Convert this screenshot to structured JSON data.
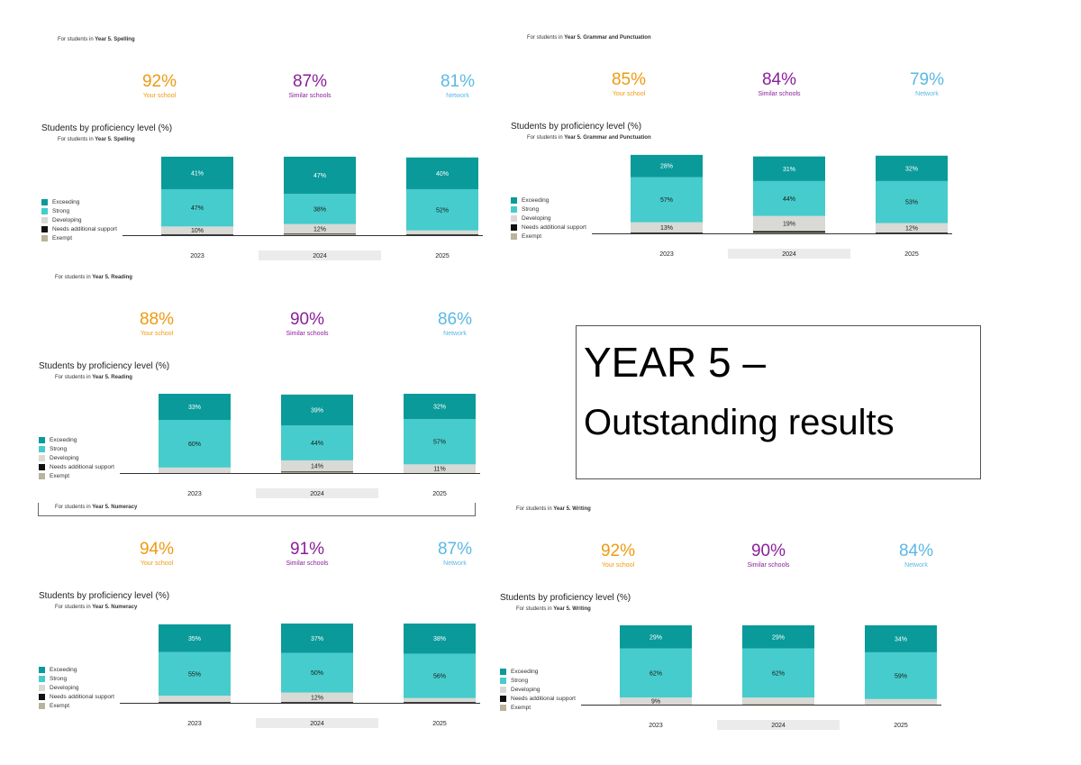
{
  "legend": {
    "items": [
      {
        "label": "Exceeding",
        "color": "#0a9a9a"
      },
      {
        "label": "Strong",
        "color": "#46cccc"
      },
      {
        "label": "Developing",
        "color": "#d9d9d5"
      },
      {
        "label": "Needs additional support",
        "color": "#111111"
      },
      {
        "label": "Exempt",
        "color": "#b8b39a"
      }
    ]
  },
  "summary_labels": {
    "school": "Your school",
    "similar": "Similar schools",
    "network": "Network"
  },
  "summary_colors": {
    "school": "#ee9a10",
    "similar": "#8a1f9a",
    "network": "#5bb8e4"
  },
  "chart_title": "Students by proficiency level (%)",
  "subtitle_prefix": "For students in",
  "title_box": {
    "line1": "YEAR 5 –",
    "line2": "Outstanding results"
  },
  "chart_data": [
    {
      "type": "bar",
      "stacked": true,
      "subject": "Year 5. Spelling",
      "summary": {
        "school": "92%",
        "similar": "87%",
        "network": "81%"
      },
      "categories": [
        "2023",
        "2024",
        "2025"
      ],
      "series": [
        {
          "name": "Exceeding",
          "values": [
            41,
            47,
            40
          ]
        },
        {
          "name": "Strong",
          "values": [
            47,
            38,
            52
          ]
        },
        {
          "name": "Developing",
          "values": [
            10,
            12,
            5
          ]
        },
        {
          "name": "Needs additional support",
          "values": [
            1,
            1,
            1
          ]
        },
        {
          "name": "Exempt",
          "values": [
            0,
            1,
            0
          ]
        }
      ],
      "labels": [
        [
          "41%",
          "47%",
          "10%"
        ],
        [
          "47%",
          "38%",
          "12%"
        ],
        [
          "40%",
          "52%",
          ""
        ]
      ]
    },
    {
      "type": "bar",
      "stacked": true,
      "subject": "Year 5. Grammar and Punctuation",
      "summary": {
        "school": "85%",
        "similar": "84%",
        "network": "79%"
      },
      "categories": [
        "2023",
        "2024",
        "2025"
      ],
      "series": [
        {
          "name": "Exceeding",
          "values": [
            28,
            31,
            32
          ]
        },
        {
          "name": "Strong",
          "values": [
            57,
            44,
            53
          ]
        },
        {
          "name": "Developing",
          "values": [
            13,
            19,
            12
          ]
        },
        {
          "name": "Needs additional support",
          "values": [
            1,
            2,
            1
          ]
        },
        {
          "name": "Exempt",
          "values": [
            0,
            1,
            0
          ]
        }
      ],
      "labels": [
        [
          "28%",
          "57%",
          "13%"
        ],
        [
          "31%",
          "44%",
          "19%"
        ],
        [
          "32%",
          "53%",
          "12%"
        ]
      ]
    },
    {
      "type": "bar",
      "stacked": true,
      "subject": "Year 5. Reading",
      "summary": {
        "school": "88%",
        "similar": "90%",
        "network": "86%"
      },
      "categories": [
        "2023",
        "2024",
        "2025"
      ],
      "series": [
        {
          "name": "Exceeding",
          "values": [
            33,
            39,
            32
          ]
        },
        {
          "name": "Strong",
          "values": [
            60,
            44,
            57
          ]
        },
        {
          "name": "Developing",
          "values": [
            7,
            14,
            11
          ]
        },
        {
          "name": "Needs additional support",
          "values": [
            0,
            1,
            0
          ]
        },
        {
          "name": "Exempt",
          "values": [
            0,
            1,
            0
          ]
        }
      ],
      "labels": [
        [
          "33%",
          "60%",
          ""
        ],
        [
          "39%",
          "44%",
          "14%"
        ],
        [
          "32%",
          "57%",
          "11%"
        ]
      ]
    },
    {
      "type": "bar",
      "stacked": true,
      "subject": "Year 5. Numeracy",
      "summary": {
        "school": "94%",
        "similar": "91%",
        "network": "87%"
      },
      "categories": [
        "2023",
        "2024",
        "2025"
      ],
      "series": [
        {
          "name": "Exceeding",
          "values": [
            35,
            37,
            38
          ]
        },
        {
          "name": "Strong",
          "values": [
            55,
            50,
            56
          ]
        },
        {
          "name": "Developing",
          "values": [
            8,
            12,
            5
          ]
        },
        {
          "name": "Needs additional support",
          "values": [
            1,
            1,
            1
          ]
        },
        {
          "name": "Exempt",
          "values": [
            0,
            0,
            0
          ]
        }
      ],
      "labels": [
        [
          "35%",
          "55%",
          ""
        ],
        [
          "37%",
          "50%",
          "12%"
        ],
        [
          "38%",
          "56%",
          ""
        ]
      ]
    },
    {
      "type": "bar",
      "stacked": true,
      "subject": "Year 5. Writing",
      "summary": {
        "school": "92%",
        "similar": "90%",
        "network": "84%"
      },
      "categories": [
        "2023",
        "2024",
        "2025"
      ],
      "series": [
        {
          "name": "Exceeding",
          "values": [
            29,
            29,
            34
          ]
        },
        {
          "name": "Strong",
          "values": [
            62,
            62,
            59
          ]
        },
        {
          "name": "Developing",
          "values": [
            9,
            8,
            7
          ]
        },
        {
          "name": "Needs additional support",
          "values": [
            0,
            0,
            0
          ]
        },
        {
          "name": "Exempt",
          "values": [
            0,
            1,
            0
          ]
        }
      ],
      "labels": [
        [
          "29%",
          "62%",
          "9%"
        ],
        [
          "29%",
          "62%",
          ""
        ],
        [
          "34%",
          "59%",
          ""
        ]
      ]
    }
  ]
}
